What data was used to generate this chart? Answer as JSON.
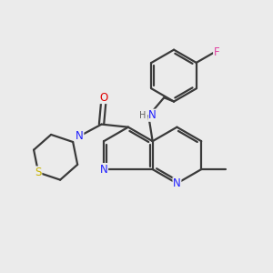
{
  "bg_color": "#ebebeb",
  "bond_color": "#3a3a3a",
  "bond_width": 1.6,
  "atom_colors": {
    "N": "#2020ff",
    "O": "#e00000",
    "S": "#c8b400",
    "F": "#e040a0",
    "C": "#3a3a3a",
    "H": "#606060"
  },
  "font_size": 8.5,
  "fig_size": [
    3.0,
    3.0
  ],
  "dpi": 100
}
